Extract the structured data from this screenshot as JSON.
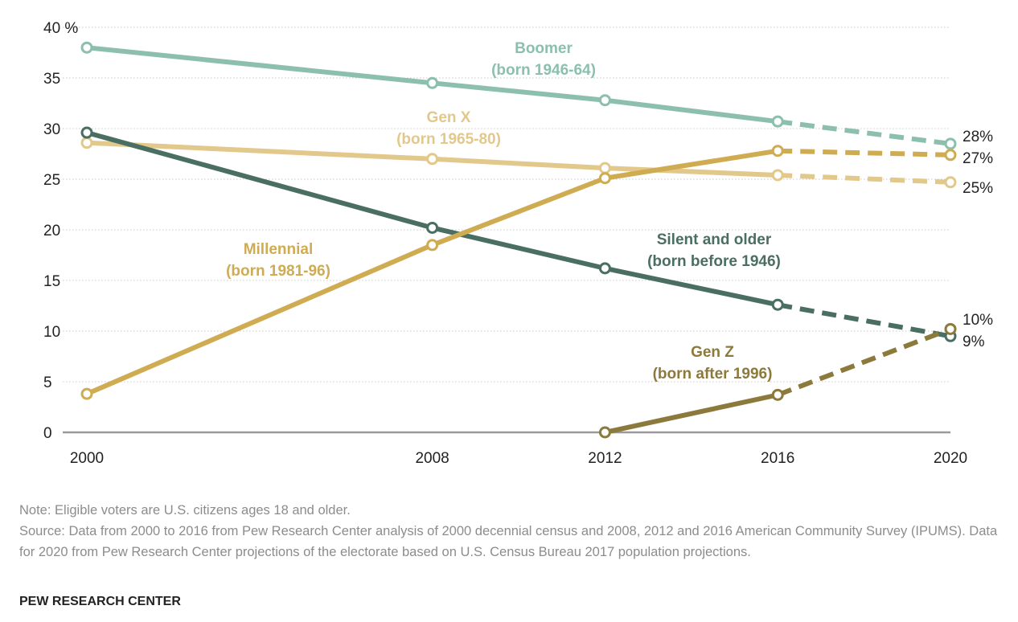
{
  "chart_data": {
    "type": "line",
    "x": [
      2000,
      2008,
      2012,
      2016,
      2020
    ],
    "ylim": [
      0,
      40
    ],
    "yticks": [
      0,
      5,
      10,
      15,
      20,
      25,
      30,
      35,
      40
    ],
    "ytick_labels": [
      "0",
      "5",
      "10",
      "15",
      "20",
      "25",
      "30",
      "35",
      "40 %"
    ],
    "xtick_labels": [
      "2000",
      "2008",
      "2012",
      "2016",
      "2020"
    ],
    "grid": true,
    "projected_from": 2016,
    "series": [
      {
        "key": "boomer",
        "name": "Boomer",
        "sublabel": "(born 1946-64)",
        "color": "#8cbfae",
        "x": [
          2000,
          2008,
          2012,
          2016,
          2020
        ],
        "values": [
          38,
          34.5,
          32.8,
          30.7,
          28.5
        ],
        "end_label": "28%"
      },
      {
        "key": "genx",
        "name": "Gen X",
        "sublabel": "(born 1965-80)",
        "color": "#e3c88c",
        "x": [
          2000,
          2008,
          2012,
          2016,
          2020
        ],
        "values": [
          28.6,
          27.0,
          26.1,
          25.4,
          24.7
        ],
        "end_label": "25%"
      },
      {
        "key": "silent",
        "name": "Silent and older",
        "sublabel": "(born before 1946)",
        "color": "#4a6e62",
        "x": [
          2000,
          2008,
          2012,
          2016,
          2020
        ],
        "values": [
          29.6,
          20.2,
          16.2,
          12.6,
          9.5
        ],
        "end_label": "9%"
      },
      {
        "key": "millennial",
        "name": "Millennial",
        "sublabel": "(born 1981-96)",
        "color": "#cfac52",
        "x": [
          2000,
          2008,
          2012,
          2016,
          2020
        ],
        "values": [
          3.8,
          18.5,
          25.1,
          27.8,
          27.4
        ],
        "end_label": "27%"
      },
      {
        "key": "genz",
        "name": "Gen Z",
        "sublabel": "(born after 1996)",
        "color": "#8c7a3c",
        "x": [
          2012,
          2016,
          2020
        ],
        "values": [
          0,
          3.7,
          10.2
        ],
        "end_label": "10%"
      }
    ]
  },
  "footer": {
    "note": "Note: Eligible voters are U.S. citizens ages 18 and older.",
    "source": "Source: Data from 2000 to 2016 from Pew Research Center analysis of 2000 decennial census and 2008, 2012 and 2016 American Community Survey (IPUMS). Data for 2020 from Pew Research Center projections of the electorate based on U.S. Census Bureau 2017 population projections.",
    "brand": "PEW RESEARCH CENTER"
  }
}
